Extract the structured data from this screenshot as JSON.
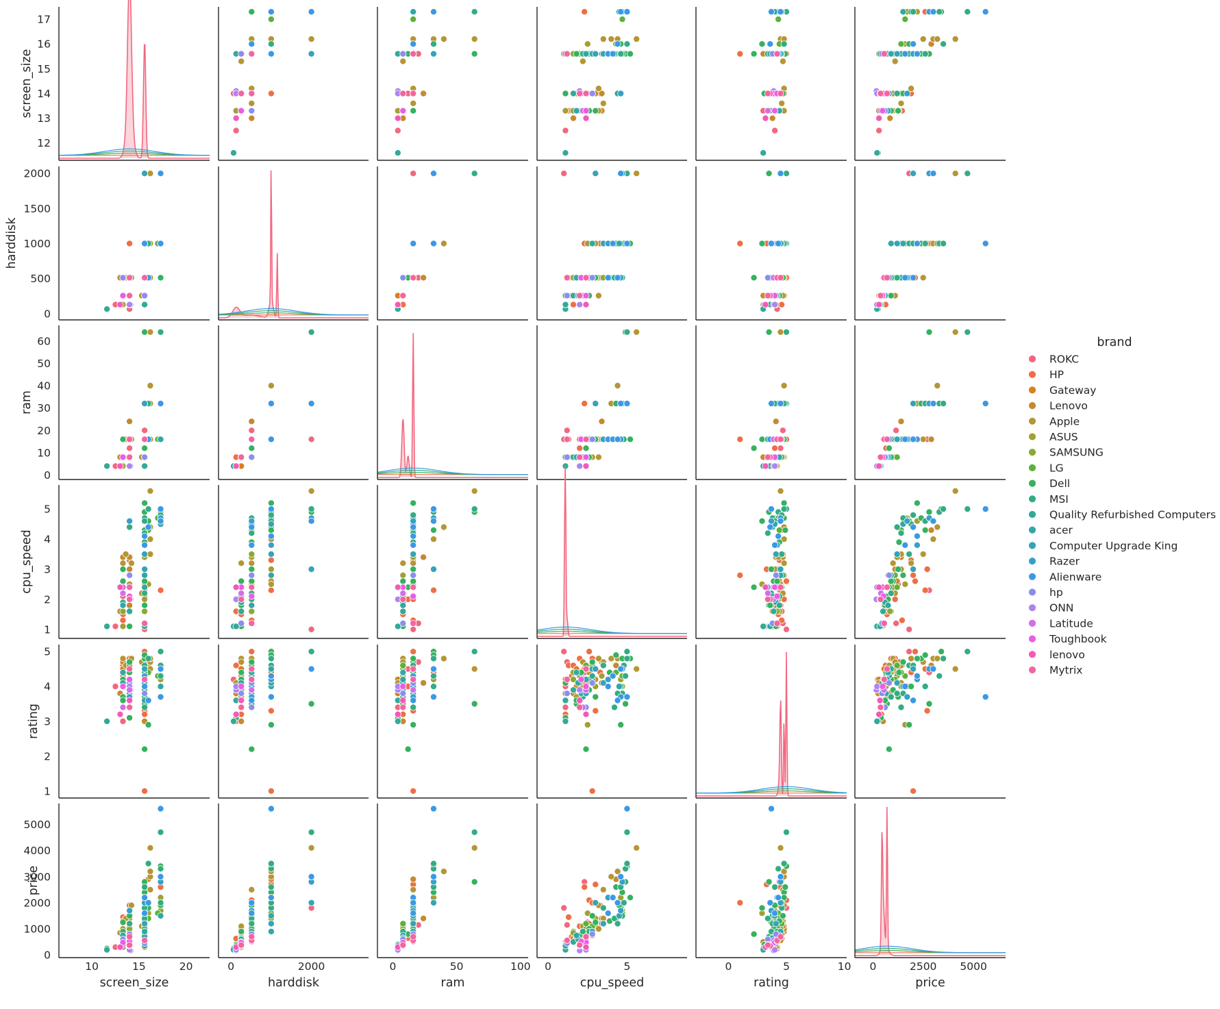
{
  "chart_data": {
    "type": "pairplot",
    "variables": [
      "screen_size",
      "harddisk",
      "ram",
      "cpu_speed",
      "rating",
      "price"
    ],
    "axis_limits": {
      "screen_size": [
        6.5,
        22.5
      ],
      "harddisk": [
        -310,
        3420
      ],
      "ram": [
        -12,
        106
      ],
      "cpu_speed": [
        -0.7,
        8.8
      ],
      "rating": [
        -2.8,
        10.2
      ],
      "price": [
        -900,
        6600
      ]
    },
    "y_limits": {
      "screen_size": [
        11.3,
        17.5
      ],
      "harddisk": [
        -90,
        2100
      ],
      "ram": [
        -2,
        67
      ],
      "cpu_speed": [
        0.7,
        5.8
      ],
      "rating": [
        0.8,
        5.2
      ],
      "price": [
        -100,
        5800
      ]
    },
    "x_ticks": {
      "screen_size": [
        "10",
        "15",
        "20"
      ],
      "harddisk": [
        "0",
        "2000"
      ],
      "ram": [
        "0",
        "50",
        "100"
      ],
      "cpu_speed": [
        "0",
        "5"
      ],
      "rating": [
        "0",
        "5",
        "10"
      ],
      "price": [
        "0",
        "2500",
        "5000"
      ]
    },
    "y_ticks": {
      "screen_size": [
        "12",
        "13",
        "14",
        "15",
        "16",
        "17"
      ],
      "harddisk": [
        "0",
        "500",
        "1000",
        "1500",
        "2000"
      ],
      "ram": [
        "0",
        "10",
        "20",
        "30",
        "40",
        "50",
        "60"
      ],
      "cpu_speed": [
        "1",
        "2",
        "3",
        "4",
        "5"
      ],
      "rating": [
        "1",
        "2",
        "3",
        "4",
        "5"
      ],
      "price": [
        "0",
        "1000",
        "2000",
        "3000",
        "4000",
        "5000"
      ]
    },
    "legend": {
      "title": "brand",
      "entries": [
        "ROKC",
        "HP",
        "Gateway",
        "Lenovo",
        "Apple",
        "ASUS",
        "SAMSUNG",
        "LG",
        "Dell",
        "MSI",
        "Quality Refurbished Computers",
        "acer",
        "Computer Upgrade King",
        "Razer",
        "Alienware",
        "hp",
        "ONN",
        "Latitude",
        "Toughbook",
        "lenovo",
        "Mytrix"
      ],
      "colors": [
        "#f2677f",
        "#ee6f46",
        "#d6801f",
        "#c48a30",
        "#b59634",
        "#a2a035",
        "#8aa935",
        "#5ab23b",
        "#36b15f",
        "#34ac83",
        "#32aa97",
        "#33a7a6",
        "#35a4b6",
        "#38a0c8",
        "#3c98e6",
        "#8a8ef0",
        "#ae84ef",
        "#d26fe8",
        "#ea5de6",
        "#f25ab8",
        "#f464a0"
      ]
    },
    "brand_weights": [
      1,
      6,
      2,
      4,
      3,
      3,
      2,
      2,
      8,
      4,
      2,
      2,
      1,
      1,
      2,
      2,
      1,
      1,
      1,
      1,
      1
    ],
    "points": [
      [
        13.3,
        512,
        8,
        2.1,
        4.3,
        650,
        1
      ],
      [
        14,
        256,
        8,
        1.1,
        3.8,
        420,
        1
      ],
      [
        15.6,
        1000,
        16,
        2.5,
        4.5,
        1250,
        1
      ],
      [
        14,
        512,
        16,
        2.8,
        4.6,
        980,
        1
      ],
      [
        15.6,
        256,
        4,
        1.1,
        3.4,
        350,
        1
      ],
      [
        15.6,
        512,
        20,
        1.2,
        4.7,
        1150,
        1
      ],
      [
        13.3,
        128,
        4,
        1.1,
        3,
        280,
        1
      ],
      [
        14,
        64,
        4,
        1.1,
        4.2,
        240,
        1
      ],
      [
        15.6,
        1000,
        32,
        2.3,
        4.4,
        2800,
        1
      ],
      [
        12.5,
        128,
        4,
        1.1,
        4,
        300,
        1
      ],
      [
        15.6,
        2000,
        16,
        1.0,
        5,
        1800,
        1
      ],
      [
        14,
        512,
        12,
        2.4,
        4.5,
        760,
        1
      ],
      [
        15.6,
        512,
        8,
        2.8,
        4.8,
        900,
        2
      ],
      [
        14,
        256,
        8,
        2.4,
        4.1,
        780,
        2
      ],
      [
        15.6,
        1000,
        16,
        3,
        3.3,
        2700,
        2
      ],
      [
        13.3,
        512,
        16,
        1.3,
        4.6,
        1450,
        2
      ],
      [
        14,
        1000,
        16,
        3.3,
        4.4,
        1900,
        2
      ],
      [
        15.6,
        512,
        12,
        2.0,
        4.0,
        650,
        2
      ],
      [
        13.3,
        256,
        8,
        1.5,
        4.3,
        700,
        2
      ],
      [
        15.6,
        256,
        8,
        1.1,
        3.2,
        420,
        2
      ],
      [
        14,
        512,
        16,
        2.0,
        4.8,
        1100,
        2
      ],
      [
        15.6,
        512,
        16,
        2.6,
        5,
        2100,
        2
      ],
      [
        17.3,
        1000,
        32,
        2.3,
        4.5,
        2600,
        2
      ],
      [
        14,
        128,
        8,
        1.6,
        4.6,
        630,
        2
      ],
      [
        15.6,
        1000,
        16,
        2.8,
        1,
        2000,
        2
      ],
      [
        15.6,
        256,
        4,
        1.1,
        4.2,
        300,
        3
      ],
      [
        14,
        128,
        4,
        1.1,
        3.8,
        260,
        3
      ],
      [
        15.6,
        512,
        8,
        2.1,
        4.0,
        500,
        3
      ],
      [
        13.3,
        256,
        8,
        1.8,
        4.5,
        560,
        3
      ],
      [
        14,
        512,
        16,
        3,
        4.2,
        1100,
        4
      ],
      [
        15.6,
        512,
        16,
        2.5,
        4.5,
        900,
        4
      ],
      [
        14,
        256,
        8,
        1.8,
        4.0,
        650,
        4
      ],
      [
        13.3,
        512,
        16,
        3.4,
        4.7,
        1300,
        4
      ],
      [
        15.6,
        1000,
        16,
        2.6,
        4.4,
        1200,
        4
      ],
      [
        14,
        512,
        24,
        3.4,
        4.1,
        1400,
        4
      ],
      [
        16,
        1000,
        16,
        4.3,
        4.6,
        2900,
        4
      ],
      [
        15.6,
        256,
        8,
        1.1,
        3.0,
        500,
        4
      ],
      [
        13,
        512,
        8,
        1.6,
        3.8,
        850,
        4
      ],
      [
        14,
        512,
        8,
        2.8,
        4.5,
        750,
        4
      ],
      [
        13.3,
        256,
        8,
        3.2,
        4.8,
        1000,
        5
      ],
      [
        16.2,
        512,
        16,
        3.5,
        4.7,
        2500,
        5
      ],
      [
        16.2,
        1000,
        32,
        4.0,
        4.8,
        3000,
        5
      ],
      [
        14.2,
        512,
        16,
        3.2,
        4.8,
        1900,
        5
      ],
      [
        15.3,
        256,
        8,
        2.2,
        4.7,
        1100,
        5
      ],
      [
        16.2,
        2000,
        64,
        5.6,
        4.5,
        4100,
        5
      ],
      [
        13.6,
        512,
        16,
        3.5,
        4.6,
        1400,
        5
      ],
      [
        16.2,
        1000,
        40,
        4.4,
        4.8,
        3200,
        5
      ],
      [
        15.6,
        512,
        8,
        2.0,
        4.3,
        650,
        6
      ],
      [
        14,
        512,
        16,
        2.5,
        4.5,
        900,
        6
      ],
      [
        17.3,
        1000,
        32,
        4.6,
        4.2,
        2200,
        6
      ],
      [
        13.3,
        256,
        8,
        1.8,
        3.7,
        700,
        6
      ],
      [
        15.6,
        1000,
        16,
        3,
        4.0,
        1400,
        6
      ],
      [
        16,
        1000,
        16,
        2.5,
        2.9,
        1600,
        6
      ],
      [
        14,
        512,
        8,
        2.8,
        4.6,
        800,
        6
      ],
      [
        15.6,
        512,
        16,
        3.4,
        4.3,
        1200,
        6
      ],
      [
        13.3,
        128,
        4,
        1.1,
        4.1,
        300,
        6
      ],
      [
        15.6,
        512,
        8,
        1.6,
        4.4,
        900,
        7
      ],
      [
        13.3,
        256,
        8,
        1.6,
        4.2,
        850,
        7
      ],
      [
        15.6,
        512,
        16,
        3.5,
        4.6,
        1200,
        7
      ],
      [
        17.3,
        1000,
        16,
        4.7,
        4.0,
        1700,
        7
      ],
      [
        14,
        512,
        8,
        2.4,
        4.5,
        1000,
        7
      ],
      [
        15.6,
        512,
        16,
        2.8,
        4.2,
        1100,
        8
      ],
      [
        17,
        1000,
        16,
        4.7,
        4.3,
        1600,
        8
      ],
      [
        16,
        512,
        16,
        4.3,
        4.4,
        1400,
        8
      ],
      [
        14,
        512,
        8,
        2.4,
        4.6,
        1200,
        8
      ],
      [
        15.6,
        512,
        16,
        2.6,
        3.9,
        1000,
        9
      ],
      [
        14,
        256,
        8,
        2.1,
        4.4,
        650,
        9
      ],
      [
        15.6,
        1000,
        32,
        4.7,
        4.8,
        2400,
        9
      ],
      [
        13.3,
        512,
        16,
        3.0,
        3.7,
        1250,
        9
      ],
      [
        15.6,
        256,
        8,
        1.1,
        4.1,
        450,
        9
      ],
      [
        17.3,
        1000,
        32,
        5.0,
        5,
        3400,
        9
      ],
      [
        14,
        512,
        16,
        2.8,
        4.7,
        1500,
        9
      ],
      [
        15.6,
        512,
        8,
        1.8,
        3.5,
        700,
        9
      ],
      [
        15.6,
        2000,
        64,
        4.9,
        3.5,
        2800,
        9
      ],
      [
        13.3,
        256,
        8,
        1.8,
        3.6,
        600,
        9
      ],
      [
        16,
        1000,
        16,
        4.6,
        2.9,
        1800,
        9
      ],
      [
        15.6,
        512,
        16,
        3.9,
        4.4,
        1300,
        9
      ],
      [
        14,
        128,
        4,
        1.1,
        3.1,
        400,
        9
      ],
      [
        15.6,
        1000,
        16,
        5.2,
        4.8,
        2200,
        9
      ],
      [
        11.6,
        64,
        4,
        1.1,
        3.0,
        250,
        9
      ],
      [
        15.6,
        512,
        12,
        2.4,
        2.2,
        800,
        9
      ],
      [
        17.3,
        512,
        16,
        4.5,
        4.0,
        1900,
        9
      ],
      [
        13.3,
        256,
        8,
        2.6,
        4.2,
        900,
        9
      ],
      [
        15.6,
        1000,
        32,
        4.3,
        4.9,
        2600,
        9
      ],
      [
        14,
        512,
        8,
        2.0,
        4.1,
        750,
        9
      ],
      [
        15.6,
        1000,
        16,
        3.5,
        4.6,
        1800,
        10
      ],
      [
        17.3,
        1000,
        32,
        4.9,
        4.3,
        3300,
        10
      ],
      [
        15.6,
        512,
        16,
        4.7,
        3.8,
        1500,
        10
      ],
      [
        17.3,
        2000,
        64,
        5.0,
        5,
        4700,
        10
      ],
      [
        16,
        1000,
        32,
        5.0,
        4.8,
        3500,
        10
      ],
      [
        15.6,
        512,
        16,
        4.2,
        3.4,
        1400,
        10
      ],
      [
        17.3,
        1000,
        16,
        4.8,
        4.6,
        2000,
        10
      ],
      [
        15.6,
        1000,
        32,
        4.6,
        4.0,
        2600,
        10
      ],
      [
        14,
        512,
        16,
        4.4,
        3.8,
        1200,
        10
      ],
      [
        15.6,
        512,
        8,
        2.2,
        3.7,
        900,
        10
      ],
      [
        11.6,
        64,
        4,
        1.1,
        3.0,
        200,
        11
      ],
      [
        14,
        256,
        8,
        1.6,
        3.9,
        500,
        11
      ],
      [
        15.6,
        512,
        16,
        2.8,
        4.3,
        800,
        11
      ],
      [
        13.3,
        256,
        8,
        1.9,
        4.1,
        600,
        11
      ],
      [
        15.6,
        128,
        4,
        1.1,
        3.6,
        350,
        11
      ],
      [
        15.6,
        512,
        8,
        2.4,
        4.2,
        700,
        12
      ],
      [
        14,
        256,
        8,
        2.1,
        3.8,
        500,
        12
      ],
      [
        15.6,
        1000,
        16,
        2.8,
        4.5,
        900,
        12
      ],
      [
        13.3,
        512,
        8,
        1.8,
        4.4,
        750,
        12
      ],
      [
        17.3,
        1000,
        16,
        4.5,
        4.0,
        1500,
        12
      ],
      [
        15.6,
        1000,
        16,
        3.5,
        4.1,
        1200,
        13
      ],
      [
        14,
        512,
        8,
        2.4,
        3.8,
        650,
        13
      ],
      [
        15.6,
        2000,
        32,
        3.0,
        4.5,
        2000,
        13
      ],
      [
        15.6,
        1000,
        16,
        3.8,
        4.2,
        2200,
        14
      ],
      [
        17.3,
        2000,
        32,
        4.7,
        4.5,
        2800,
        14
      ],
      [
        14,
        512,
        16,
        4.6,
        3.7,
        1700,
        14
      ],
      [
        17.3,
        1000,
        32,
        5.0,
        3.7,
        5600,
        15
      ],
      [
        15.6,
        512,
        16,
        3.8,
        4.0,
        1600,
        15
      ],
      [
        17.3,
        2000,
        32,
        4.6,
        4.5,
        3000,
        15
      ],
      [
        15.6,
        1000,
        16,
        4.1,
        4.3,
        2200,
        15
      ],
      [
        16,
        512,
        16,
        4.4,
        3.6,
        2000,
        15
      ],
      [
        13.3,
        512,
        8,
        2.4,
        3.4,
        600,
        16
      ],
      [
        15.6,
        256,
        8,
        1.2,
        3.8,
        450,
        16
      ],
      [
        14,
        512,
        16,
        2.8,
        4.1,
        800,
        16
      ],
      [
        14.1,
        128,
        4,
        2.0,
        3.9,
        170,
        17
      ],
      [
        14,
        128,
        4,
        2.4,
        4.0,
        200,
        17
      ],
      [
        13.3,
        256,
        8,
        2.2,
        3.4,
        400,
        18
      ],
      [
        14,
        512,
        16,
        2.4,
        3.9,
        550,
        18
      ],
      [
        13.3,
        256,
        8,
        2.4,
        4.0,
        480,
        19
      ],
      [
        14,
        512,
        16,
        2.1,
        4.2,
        520,
        19
      ],
      [
        13,
        128,
        4,
        2.4,
        3.2,
        300,
        20
      ],
      [
        14,
        256,
        8,
        2.0,
        3.6,
        350,
        20
      ],
      [
        14,
        256,
        8,
        2.0,
        3.4,
        380,
        21
      ],
      [
        15.6,
        512,
        16,
        1.2,
        4.2,
        560,
        21
      ],
      [
        14,
        512,
        16,
        2.4,
        4.5,
        700,
        21
      ]
    ],
    "diag_kde": [
      {
        "peaks": [
          [
            14,
            0.2,
            1.0
          ],
          [
            15.6,
            0.12,
            0.82
          ],
          [
            14,
            0.35,
            0.28
          ]
        ]
      },
      {
        "peaks": [
          [
            1000,
            10,
            1.0
          ],
          [
            1150,
            12,
            0.45
          ],
          [
            130,
            90,
            0.07
          ],
          [
            1000,
            50,
            0.12
          ],
          [
            500,
            200,
            0.02
          ]
        ]
      },
      {
        "peaks": [
          [
            16,
            0.45,
            1.0
          ],
          [
            8,
            0.9,
            0.41
          ],
          [
            12,
            0.9,
            0.15
          ]
        ]
      },
      {
        "peaks": [
          [
            1.1,
            0.03,
            1.0
          ],
          [
            1.05,
            0.03,
            0.61
          ],
          [
            1.2,
            0.05,
            0.13
          ]
        ]
      },
      {
        "peaks": [
          [
            5,
            0.045,
            1.0
          ],
          [
            4.5,
            0.06,
            0.63
          ],
          [
            4.8,
            0.04,
            0.55
          ],
          [
            4.4,
            0.1,
            0.09
          ]
        ]
      },
      {
        "peaks": [
          [
            700,
            25,
            1.0
          ],
          [
            450,
            30,
            0.62
          ],
          [
            500,
            60,
            0.32
          ],
          [
            600,
            150,
            0.07
          ]
        ]
      }
    ],
    "axis_titles_x": [
      "screen_size",
      "harddisk",
      "ram",
      "cpu_speed",
      "rating",
      "price"
    ],
    "axis_titles_y": [
      "screen_size",
      "harddisk",
      "ram",
      "cpu_speed",
      "rating",
      "price"
    ]
  }
}
